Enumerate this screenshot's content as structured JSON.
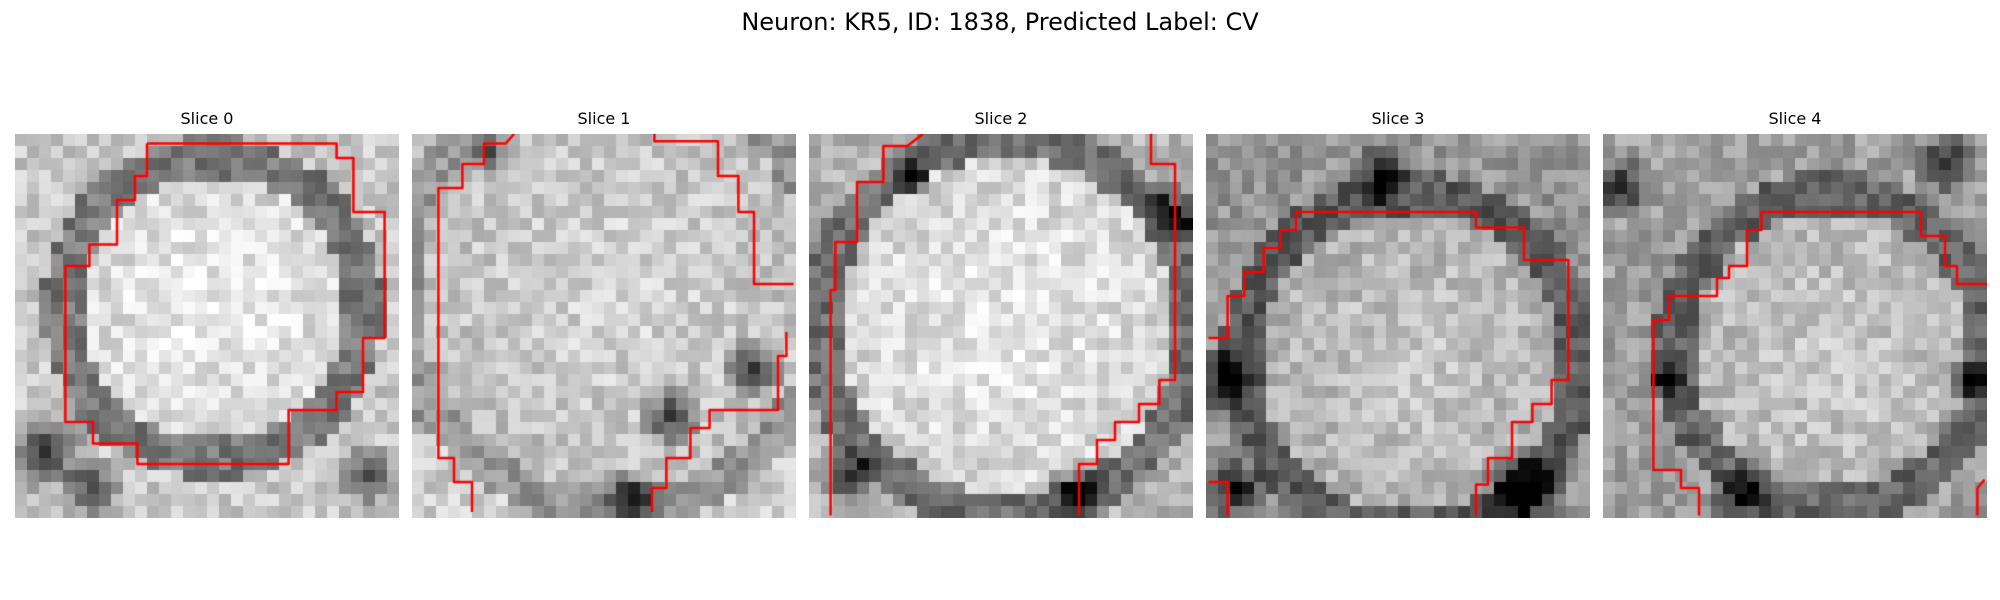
{
  "figure": {
    "title": "Neuron: KR5, ID: 1838, Predicted Label: CV",
    "background": "#ffffff",
    "contour_color": "#ff0000",
    "slices": [
      {
        "title": "Slice 0",
        "icon": "neuron-slice-image"
      },
      {
        "title": "Slice 1",
        "icon": "neuron-slice-image"
      },
      {
        "title": "Slice 2",
        "icon": "neuron-slice-image"
      },
      {
        "title": "Slice 3",
        "icon": "neuron-slice-image"
      },
      {
        "title": "Slice 4",
        "icon": "neuron-slice-image"
      }
    ]
  }
}
